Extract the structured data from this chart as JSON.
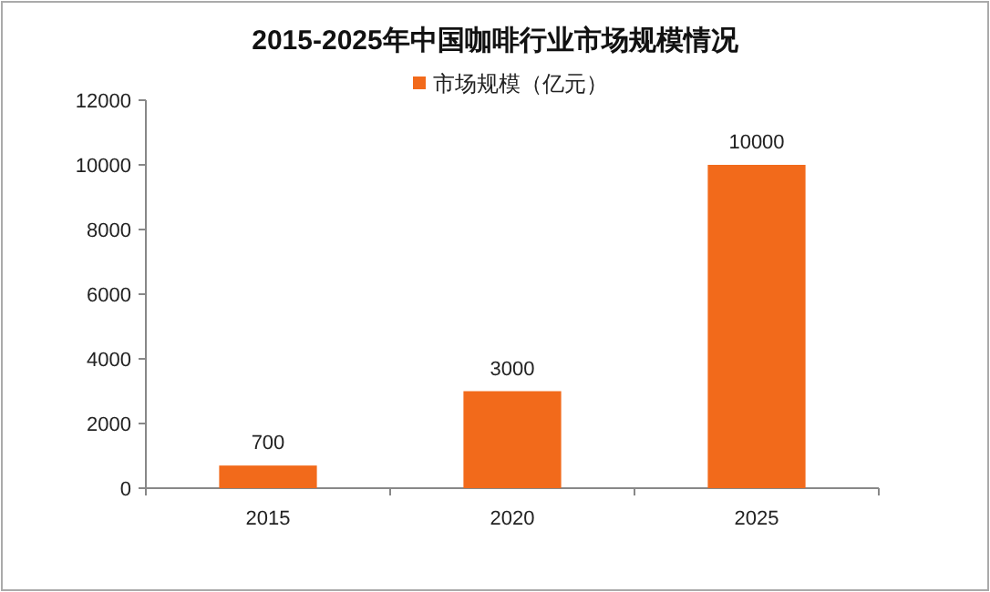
{
  "chart_data": {
    "type": "bar",
    "title": "2015-2025年中国咖啡行业市场规模情况",
    "categories": [
      "2015",
      "2020",
      "2025"
    ],
    "series": [
      {
        "name": "市场规模（亿元）",
        "color": "#f26a1b",
        "values": [
          700,
          3000,
          10000
        ]
      }
    ],
    "ylim": [
      0,
      12000
    ],
    "yticks": [
      0,
      2000,
      4000,
      6000,
      8000,
      10000,
      12000
    ],
    "data_labels": true,
    "legend": "top",
    "grid": false
  }
}
